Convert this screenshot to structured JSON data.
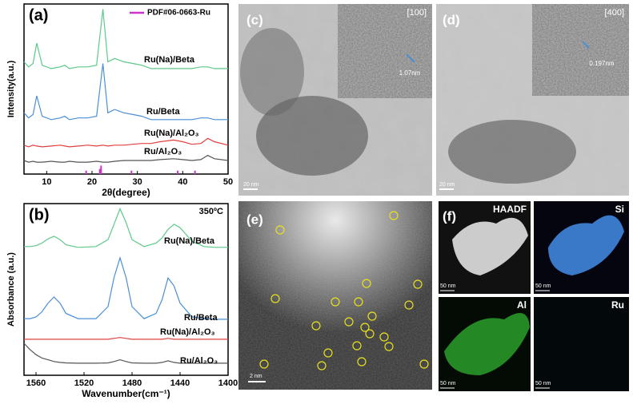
{
  "chart_data": [
    {
      "type": "line",
      "panel_label": "(a)",
      "y_label": "Intensity(a.u.)",
      "x_label": "2θ(degree)",
      "xlim": [
        5,
        50
      ],
      "xticks": [
        10,
        20,
        30,
        40,
        50
      ],
      "ylim": [
        0,
        100
      ],
      "x": [
        5,
        6,
        7,
        7.8,
        9,
        11,
        13,
        14,
        15,
        17,
        19,
        21,
        22.4,
        23.5,
        25,
        27,
        29,
        31,
        33,
        35,
        38,
        40,
        42,
        44,
        45.5,
        47,
        50
      ],
      "series": [
        {
          "name": "Ru(Na)/Beta",
          "color": "#5cc98a",
          "values": [
            66,
            63,
            65,
            77,
            64,
            62,
            63,
            64,
            62,
            63,
            63,
            64,
            97,
            66,
            68,
            66,
            65,
            64,
            62,
            62,
            62,
            62,
            62,
            63,
            63,
            62,
            62
          ]
        },
        {
          "name": "Ru/Beta",
          "color": "#4a8fd6",
          "values": [
            36,
            33,
            35,
            46,
            34,
            32,
            33,
            34,
            32,
            33,
            33,
            34,
            65,
            36,
            38,
            36,
            35,
            34,
            32,
            32,
            32,
            32,
            32,
            33,
            33,
            32,
            32
          ]
        },
        {
          "name": "Ru(Na)/Al₂O₃",
          "color": "#e04040",
          "values": [
            17,
            16,
            17,
            16.5,
            16,
            16.5,
            17,
            16.5,
            16,
            16.5,
            17,
            16.5,
            17,
            16.5,
            17,
            17,
            17.5,
            18,
            18,
            19,
            20,
            19,
            17.5,
            18,
            21,
            19,
            17
          ]
        },
        {
          "name": "Ru/Al₂O₃",
          "color": "#555555",
          "values": [
            8,
            7,
            7.5,
            7,
            7,
            7.5,
            7,
            7,
            7.5,
            7,
            7,
            7.5,
            7,
            7,
            7.5,
            8,
            8,
            8,
            8,
            8.5,
            9,
            8.5,
            8,
            8.5,
            11,
            9,
            8
          ]
        }
      ],
      "reference": {
        "name": "PDF#06-0663-Ru",
        "color": "#cc33cc",
        "x": [
          18.7,
          21.7,
          22,
          28.7,
          38.9,
          42.7
        ],
        "values": [
          2,
          3,
          5,
          2,
          2,
          2
        ]
      }
    },
    {
      "type": "line",
      "panel_label": "(b)",
      "y_label": "Absorbance (a.u.)",
      "x_label": "Wavenumber(cm⁻¹)",
      "annotation": "350ºC",
      "xlim": [
        1570,
        1400
      ],
      "xticks": [
        1560,
        1520,
        1480,
        1440,
        1400
      ],
      "ylim": [
        0,
        100
      ],
      "x": [
        1570,
        1565,
        1560,
        1555,
        1550,
        1545,
        1540,
        1535,
        1525,
        1510,
        1500,
        1495,
        1490,
        1485,
        1480,
        1470,
        1460,
        1455,
        1450,
        1445,
        1440,
        1430,
        1420,
        1410,
        1400
      ],
      "series": [
        {
          "name": "Ru(Na)/Beta",
          "color": "#5cc98a",
          "values": [
            75,
            75,
            75.5,
            77,
            79.5,
            81,
            79,
            76,
            74.5,
            75,
            79,
            88,
            97,
            89,
            79,
            75,
            77,
            80,
            85,
            88,
            86,
            78,
            75,
            74.5,
            74.5
          ]
        },
        {
          "name": "Ru/Beta",
          "color": "#4a8fd6",
          "values": [
            33,
            33,
            34,
            37,
            42,
            45.6,
            42,
            36,
            33,
            33,
            40,
            57,
            68.4,
            57,
            40,
            33,
            36,
            44,
            56.7,
            52,
            42,
            34,
            33,
            32.6,
            32.6
          ]
        },
        {
          "name": "Ru(Na)/Al₂O₃",
          "color": "#e04040",
          "values": [
            21,
            21,
            21,
            21,
            21,
            21,
            21,
            21,
            21,
            21,
            21,
            21.5,
            22,
            21.5,
            21,
            21,
            21,
            21,
            21.5,
            21,
            21,
            21,
            21,
            21,
            21
          ]
        },
        {
          "name": "Ru/Al₂O₃",
          "color": "#555555",
          "values": [
            18.6,
            15,
            12,
            10,
            9,
            8,
            7.5,
            7.2,
            7,
            7,
            7.2,
            8,
            9,
            8,
            7.2,
            7,
            7,
            7.5,
            8.4,
            7.5,
            7,
            7,
            7,
            7,
            7
          ]
        }
      ]
    }
  ],
  "panels": {
    "c": {
      "label": "(c)",
      "zone": "[100]",
      "spacing": "1.07nm",
      "scale": "20 nm"
    },
    "d": {
      "label": "(d)",
      "zone": "[400]",
      "spacing": "0.197nm",
      "scale": "20 nm"
    },
    "e": {
      "label": "(e)",
      "scale": "2 nm"
    },
    "f": {
      "label": "(f)",
      "maps": [
        {
          "name": "HAADF",
          "scale": "50 nm"
        },
        {
          "name": "Si",
          "scale": "50 nm"
        },
        {
          "name": "Al",
          "scale": "50 nm"
        },
        {
          "name": "Ru",
          "scale": "50 nm"
        }
      ]
    }
  }
}
